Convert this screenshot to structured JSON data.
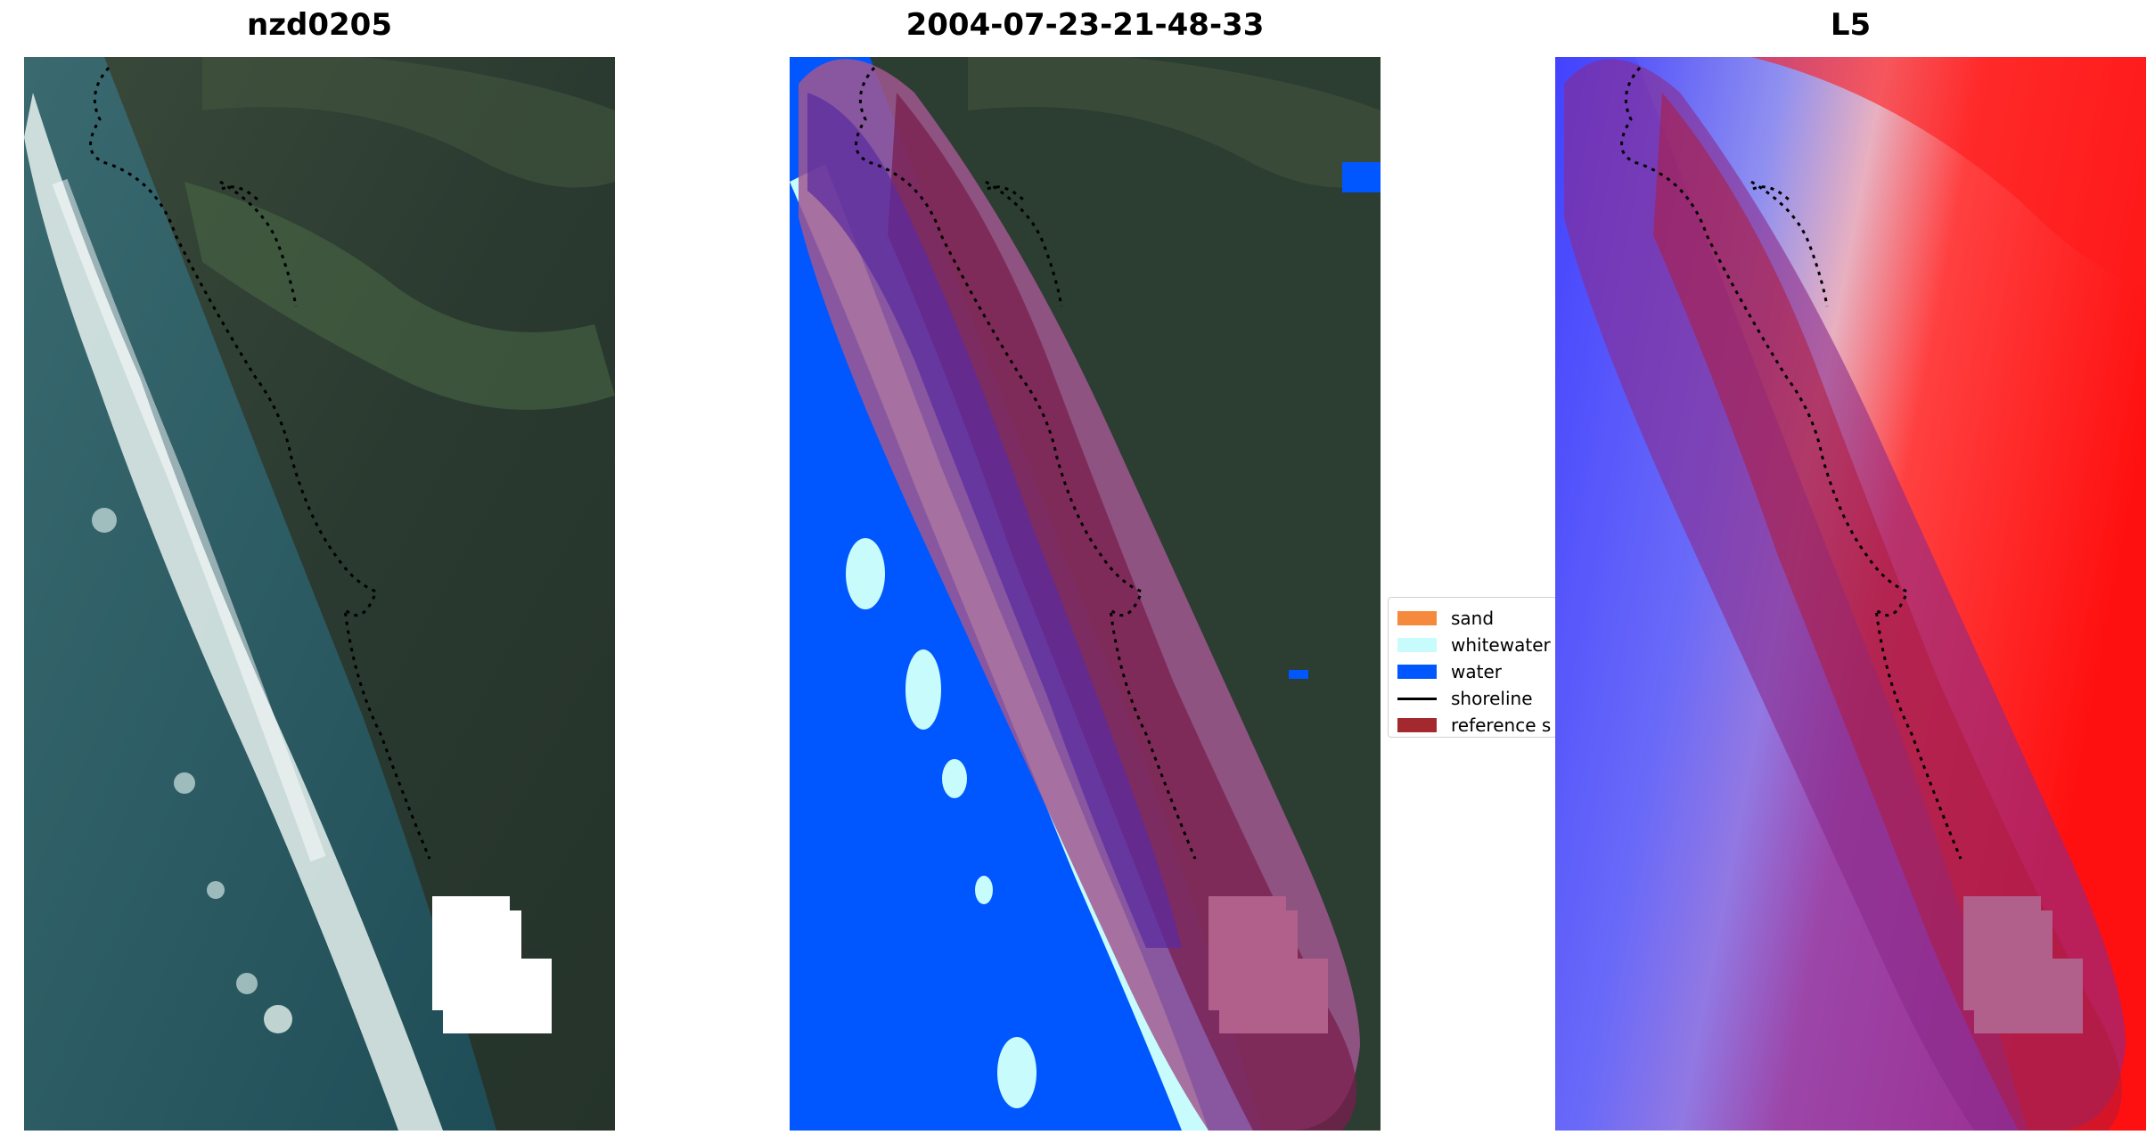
{
  "titles": {
    "left": "nzd0205",
    "middle": "2004-07-23-21-48-33",
    "right": "L5"
  },
  "legend": {
    "items": [
      {
        "label": "sand",
        "color": "#f58a3c",
        "kind": "patch"
      },
      {
        "label": "whitewater",
        "color": "#c8fbfb",
        "kind": "patch"
      },
      {
        "label": "water",
        "color": "#0057ff",
        "kind": "patch"
      },
      {
        "label": "shoreline",
        "color": "#000000",
        "kind": "line"
      },
      {
        "label": "reference s",
        "color": "#a3292e",
        "kind": "patch"
      }
    ]
  },
  "colors": {
    "vegetation_dark": "#263a2c",
    "vegetation_mid": "#3f5a3c",
    "ocean": "#2b5a63",
    "surf_white": "#e8f4f2",
    "water_class": "#0057ff",
    "whitewater_class": "#c8fbfb",
    "reference_buffer": "#8b1a2e",
    "index_red": "#ff1a1a",
    "index_blue": "#3a3aff"
  }
}
